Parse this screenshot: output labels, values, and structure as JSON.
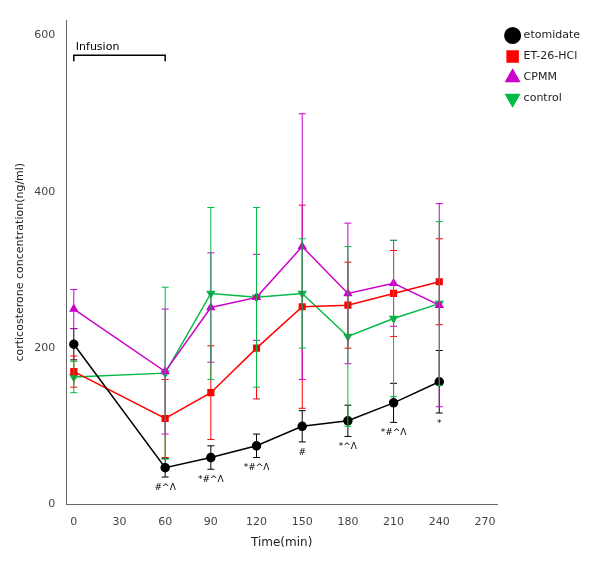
{
  "chart_data": {
    "type": "line",
    "x": [
      0,
      60,
      90,
      120,
      150,
      180,
      210,
      240
    ],
    "series": [
      {
        "name": "etomidate",
        "color": "#000000",
        "marker": "circle",
        "values": [
          205,
          47,
          60,
          75,
          100,
          107,
          130,
          157
        ],
        "errors": [
          20,
          12,
          15,
          15,
          20,
          20,
          25,
          40
        ]
      },
      {
        "name": "ET-26-HCl",
        "color": "#ff0000",
        "marker": "square",
        "values": [
          170,
          110,
          143,
          200,
          253,
          255,
          270,
          285
        ],
        "errors": [
          20,
          50,
          60,
          65,
          130,
          55,
          55,
          55
        ]
      },
      {
        "name": "CPMM",
        "color": "#cc00cc",
        "marker": "triangle_up",
        "values": [
          250,
          170,
          252,
          265,
          330,
          270,
          283,
          255
        ],
        "errors": [
          25,
          80,
          70,
          55,
          170,
          90,
          55,
          130
        ]
      },
      {
        "name": "control",
        "color": "#00bb44",
        "marker": "triangle_down",
        "values": [
          163,
          168,
          270,
          265,
          270,
          215,
          238,
          257
        ],
        "errors": [
          20,
          110,
          110,
          115,
          70,
          115,
          100,
          105
        ]
      }
    ],
    "xlabel": "Time(min)",
    "ylabel": "corticosterone concentration(ng/ml)",
    "xlim": [
      -5,
      278
    ],
    "xticks": [
      0,
      30,
      60,
      90,
      120,
      150,
      180,
      210,
      240,
      270
    ],
    "ylim": [
      0,
      620
    ],
    "yticks": [
      0,
      200,
      400,
      600
    ],
    "grid": false,
    "legend": "right",
    "annotations": [
      {
        "text": "Infusion",
        "x": [
          0,
          60
        ],
        "y": 575
      },
      {
        "text": "#^Λ",
        "x": 60
      },
      {
        "text": "*#^Λ",
        "x": 90
      },
      {
        "text": "*#^Λ",
        "x": 120
      },
      {
        "text": "#",
        "x": 150
      },
      {
        "text": "*^Λ",
        "x": 180
      },
      {
        "text": "*#^Λ",
        "x": 210
      },
      {
        "text": "*",
        "x": 240
      }
    ]
  }
}
